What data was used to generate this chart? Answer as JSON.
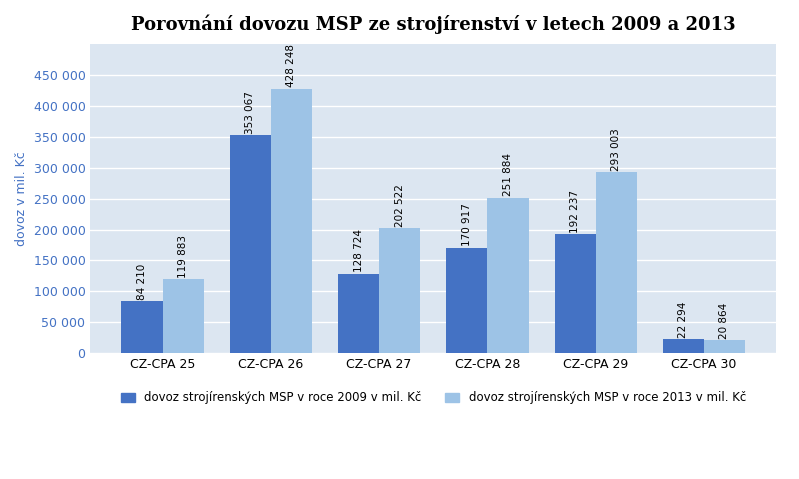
{
  "title": "Porovnání dovozu MSP ze strojírenství v letech 2009 a 2013",
  "categories": [
    "CZ-CPA 25",
    "CZ-CPA 26",
    "CZ-CPA 27",
    "CZ-CPA 28",
    "CZ-CPA 29",
    "CZ-CPA 30"
  ],
  "values_2009": [
    84210,
    353067,
    128724,
    170917,
    192237,
    22294
  ],
  "values_2013": [
    119883,
    428248,
    202522,
    251884,
    293003,
    20864
  ],
  "labels_2009": [
    "84 210",
    "353 067",
    "128 724",
    "170 917",
    "192 237",
    "22 294"
  ],
  "labels_2013": [
    "119 883",
    "428 248",
    "202 522",
    "251 884",
    "293 003",
    "20 864"
  ],
  "color_2009": "#4472C4",
  "color_2013": "#9DC3E6",
  "ylabel": "dovoz v mil. Kč",
  "legend_2009": "dovoz strojírenských MSP v roce 2009 v mil. Kč",
  "legend_2013": "dovoz strojírenských MSP v roce 2013 v mil. Kč",
  "ylim": [
    0,
    500000
  ],
  "yticks": [
    0,
    50000,
    100000,
    150000,
    200000,
    250000,
    300000,
    350000,
    400000,
    450000
  ],
  "ytick_labels": [
    "0",
    "50 000",
    "100 000",
    "150 000",
    "200 000",
    "250 000",
    "300 000",
    "350 000",
    "400 000",
    "450 000"
  ],
  "bar_width": 0.38,
  "title_fontsize": 13,
  "label_fontsize": 7.5,
  "axis_fontsize": 9,
  "legend_fontsize": 8.5,
  "plot_bg": "#DCE6F1",
  "grid_color": "#FFFFFF"
}
